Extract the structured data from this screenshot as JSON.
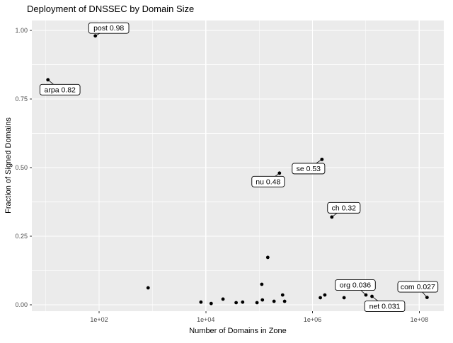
{
  "chart_data": {
    "type": "scatter",
    "title": "Deployment of DNSSEC by Domain Size",
    "xlabel": "Number of Domains in Zone",
    "ylabel": "Fraction of Signed Domains",
    "x_scale": "log10",
    "grid": true,
    "legend": "none",
    "panel_bg": "#EBEBEB",
    "grid_color": "#FFFFFF",
    "point_color": "#000000",
    "tick_color": "#333333",
    "x_domain_log10": [
      0.74,
      8.46
    ],
    "y_domain": [
      -0.023,
      1.036
    ],
    "x_ticks": [
      {
        "label": "1e+02",
        "value": 100
      },
      {
        "label": "1e+04",
        "value": 10000
      },
      {
        "label": "1e+06",
        "value": 1000000
      },
      {
        "label": "1e+08",
        "value": 100000000
      }
    ],
    "x_minor_ticks": [
      10,
      1000,
      100000,
      10000000
    ],
    "y_ticks": [
      {
        "label": "0.00",
        "value": 0
      },
      {
        "label": "0.25",
        "value": 0.25
      },
      {
        "label": "0.50",
        "value": 0.5
      },
      {
        "label": "0.75",
        "value": 0.75
      },
      {
        "label": "1.00",
        "value": 1.0
      }
    ],
    "y_minor_ticks": [
      0.125,
      0.375,
      0.625,
      0.875
    ],
    "labeled_points": [
      {
        "tld": "post",
        "x": 85,
        "y": 0.98,
        "label": "post 0.98",
        "offset": [
          19,
          -11
        ]
      },
      {
        "tld": "arpa",
        "x": 11,
        "y": 0.82,
        "label": "arpa 0.82",
        "offset": [
          17,
          14
        ]
      },
      {
        "tld": "se",
        "x": 1500000,
        "y": 0.53,
        "label": "se 0.53",
        "offset": [
          -19,
          13
        ]
      },
      {
        "tld": "nu",
        "x": 240000,
        "y": 0.48,
        "label": "nu 0.48",
        "offset": [
          -16,
          12
        ]
      },
      {
        "tld": "ch",
        "x": 2300000,
        "y": 0.32,
        "label": "ch 0.32",
        "offset": [
          17,
          -13
        ]
      },
      {
        "tld": "org",
        "x": 10000000,
        "y": 0.036,
        "label": "org 0.036",
        "offset": [
          -15,
          -14
        ]
      },
      {
        "tld": "net",
        "x": 13000000,
        "y": 0.031,
        "label": "net 0.031",
        "offset": [
          18,
          14
        ]
      },
      {
        "tld": "com",
        "x": 140000000,
        "y": 0.027,
        "label": "com 0.027",
        "offset": [
          -13,
          -15
        ]
      }
    ],
    "points": [
      {
        "x": 830,
        "y": 0.062
      },
      {
        "x": 8100,
        "y": 0.01
      },
      {
        "x": 12600,
        "y": 0.005
      },
      {
        "x": 21000,
        "y": 0.021
      },
      {
        "x": 37000,
        "y": 0.008
      },
      {
        "x": 49000,
        "y": 0.01
      },
      {
        "x": 91000,
        "y": 0.008
      },
      {
        "x": 112000,
        "y": 0.075
      },
      {
        "x": 115000,
        "y": 0.018
      },
      {
        "x": 145000,
        "y": 0.173
      },
      {
        "x": 190000,
        "y": 0.013
      },
      {
        "x": 275000,
        "y": 0.036
      },
      {
        "x": 300000,
        "y": 0.013
      },
      {
        "x": 1400000,
        "y": 0.026
      },
      {
        "x": 1700000,
        "y": 0.036
      },
      {
        "x": 3900000,
        "y": 0.026
      }
    ]
  }
}
